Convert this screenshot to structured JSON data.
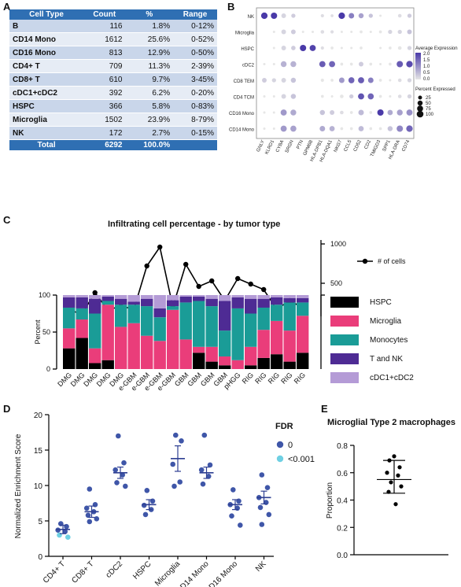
{
  "panel_labels": {
    "a": "A",
    "b": "B",
    "c": "C",
    "d": "D",
    "e": "E"
  },
  "table_a": {
    "headers": [
      "Cell Type",
      "Count",
      "%",
      "Range"
    ],
    "rows": [
      [
        "B",
        "116",
        "1.8%",
        "0-12%"
      ],
      [
        "CD14 Mono",
        "1612",
        "25.6%",
        "0-52%"
      ],
      [
        "CD16 Mono",
        "813",
        "12.9%",
        "0-50%"
      ],
      [
        "CD4+ T",
        "709",
        "11.3%",
        "2-39%"
      ],
      [
        "CD8+ T",
        "610",
        "9.7%",
        "3-45%"
      ],
      [
        "cDC1+cDC2",
        "392",
        "6.2%",
        "0-20%"
      ],
      [
        "HSPC",
        "366",
        "5.8%",
        "0-83%"
      ],
      [
        "Microglia",
        "1502",
        "23.9%",
        "8-79%"
      ],
      [
        "NK",
        "172",
        "2.7%",
        "0-15%"
      ]
    ],
    "total": [
      "Total",
      "6292",
      "100.0%",
      ""
    ]
  },
  "chart_data": [
    {
      "type": "scatter",
      "panel": "B",
      "rows": [
        "NK",
        "Microglia",
        "HSPC",
        "cDC2",
        "CD8 TEM",
        "CD4 TCM",
        "CD16 Mono",
        "CD14 Mono"
      ],
      "genes": [
        "GNLY",
        "KLRD1",
        "CYBA",
        "SRGN",
        "PTN",
        "GPM6B",
        "HLA-DPB1",
        "HLA-DQA1",
        "NKG7",
        "CCL5",
        "CD52",
        "CD2",
        "TMIGD3",
        "SPP1",
        "HLA-DRA",
        "CD74"
      ],
      "legend_color_title": "Average Expression",
      "color_ticks": [
        "2.0",
        "1.5",
        "1.0",
        "0.5",
        "0.0"
      ],
      "color_range": [
        0,
        2.0
      ],
      "legend_size_title": "Percent Expressed",
      "size_ticks": [
        "25",
        "50",
        "75",
        "100"
      ],
      "colors": {
        "low": "#e6e6e6",
        "high": "#4a3aa8"
      },
      "matrix": [
        [
          [
            2.0,
            90
          ],
          [
            2.0,
            85
          ],
          [
            0.2,
            40
          ],
          [
            0.3,
            30
          ],
          [
            0,
            0
          ],
          [
            0,
            0
          ],
          [
            0.1,
            15
          ],
          [
            0.1,
            10
          ],
          [
            2.0,
            90
          ],
          [
            1.2,
            60
          ],
          [
            0.8,
            50
          ],
          [
            0.4,
            30
          ],
          [
            0,
            5
          ],
          [
            0,
            0
          ],
          [
            0.1,
            20
          ],
          [
            0.3,
            30
          ]
        ],
        [
          [
            0,
            0
          ],
          [
            0,
            5
          ],
          [
            0.2,
            40
          ],
          [
            0.3,
            40
          ],
          [
            0,
            5
          ],
          [
            0,
            5
          ],
          [
            0.1,
            20
          ],
          [
            0.1,
            15
          ],
          [
            0,
            5
          ],
          [
            0,
            5
          ],
          [
            0,
            10
          ],
          [
            0,
            5
          ],
          [
            0,
            10
          ],
          [
            0.2,
            30
          ],
          [
            0.2,
            30
          ],
          [
            0.4,
            40
          ]
        ],
        [
          [
            0,
            0
          ],
          [
            0,
            5
          ],
          [
            0.2,
            40
          ],
          [
            0.3,
            35
          ],
          [
            2.0,
            85
          ],
          [
            1.9,
            80
          ],
          [
            0.1,
            15
          ],
          [
            0,
            10
          ],
          [
            0,
            5
          ],
          [
            0,
            5
          ],
          [
            0,
            10
          ],
          [
            0,
            0
          ],
          [
            0,
            5
          ],
          [
            0,
            10
          ],
          [
            0,
            20
          ],
          [
            0.2,
            30
          ]
        ],
        [
          [
            0,
            5
          ],
          [
            0,
            5
          ],
          [
            0.6,
            70
          ],
          [
            0.6,
            70
          ],
          [
            0,
            0
          ],
          [
            0,
            0
          ],
          [
            1.6,
            80
          ],
          [
            1.5,
            80
          ],
          [
            0,
            10
          ],
          [
            0,
            10
          ],
          [
            0.3,
            40
          ],
          [
            0,
            10
          ],
          [
            0,
            5
          ],
          [
            0,
            10
          ],
          [
            1.6,
            85
          ],
          [
            1.8,
            90
          ]
        ],
        [
          [
            0.3,
            40
          ],
          [
            0.2,
            30
          ],
          [
            0.2,
            40
          ],
          [
            0.4,
            50
          ],
          [
            0,
            0
          ],
          [
            0,
            0
          ],
          [
            0,
            15
          ],
          [
            0,
            10
          ],
          [
            0.9,
            60
          ],
          [
            1.5,
            75
          ],
          [
            1.6,
            80
          ],
          [
            1.2,
            60
          ],
          [
            0,
            10
          ],
          [
            0,
            5
          ],
          [
            0.1,
            20
          ],
          [
            0.2,
            30
          ]
        ],
        [
          [
            0,
            5
          ],
          [
            0,
            5
          ],
          [
            0.2,
            40
          ],
          [
            0.4,
            50
          ],
          [
            0,
            0
          ],
          [
            0,
            0
          ],
          [
            0,
            10
          ],
          [
            0,
            5
          ],
          [
            0,
            20
          ],
          [
            0.3,
            30
          ],
          [
            1.7,
            80
          ],
          [
            1.5,
            75
          ],
          [
            0,
            10
          ],
          [
            0,
            5
          ],
          [
            0.1,
            20
          ],
          [
            0.2,
            30
          ]
        ],
        [
          [
            0,
            5
          ],
          [
            0,
            5
          ],
          [
            0.9,
            80
          ],
          [
            0.7,
            70
          ],
          [
            0,
            0
          ],
          [
            0,
            0
          ],
          [
            0.4,
            50
          ],
          [
            0.3,
            40
          ],
          [
            0.1,
            20
          ],
          [
            0,
            10
          ],
          [
            0.5,
            60
          ],
          [
            0,
            10
          ],
          [
            2.0,
            85
          ],
          [
            0.7,
            55
          ],
          [
            0.8,
            70
          ],
          [
            1.0,
            80
          ]
        ],
        [
          [
            0,
            5
          ],
          [
            0,
            5
          ],
          [
            0.9,
            80
          ],
          [
            0.8,
            75
          ],
          [
            0,
            0
          ],
          [
            0,
            0
          ],
          [
            0.7,
            60
          ],
          [
            0.6,
            55
          ],
          [
            0,
            10
          ],
          [
            0,
            10
          ],
          [
            0.5,
            55
          ],
          [
            0,
            10
          ],
          [
            0,
            10
          ],
          [
            0.4,
            50
          ],
          [
            1.1,
            85
          ],
          [
            1.5,
            90
          ]
        ]
      ]
    },
    {
      "type": "bar",
      "panel": "C",
      "title": "Infiltrating cell percentage - by tumor type",
      "stacked": true,
      "categories": [
        "DMG",
        "DMG",
        "DMG",
        "DMG",
        "DMG",
        "e-GBM",
        "e-GBM",
        "e-GBM",
        "e-GBM",
        "GBM",
        "GBM",
        "GBM",
        "GBM",
        "pHGG",
        "RIG",
        "RIG",
        "RIG",
        "RIG",
        "RIG"
      ],
      "ylabel": "Percent",
      "ylim": [
        0,
        100
      ],
      "yticks": [
        "0",
        "50",
        "100"
      ],
      "series": [
        {
          "name": "HSPC",
          "color": "#000000",
          "values": [
            28,
            42,
            8,
            12,
            0,
            0,
            0,
            0,
            0,
            0,
            22,
            10,
            5,
            0,
            5,
            15,
            20,
            10,
            22
          ]
        },
        {
          "name": "Microglia",
          "color": "#ea3d7a",
          "values": [
            27,
            25,
            20,
            75,
            57,
            62,
            45,
            38,
            80,
            40,
            8,
            20,
            12,
            12,
            25,
            38,
            45,
            42,
            50
          ]
        },
        {
          "name": "Monocytes",
          "color": "#1a9c97",
          "values": [
            28,
            15,
            47,
            5,
            30,
            25,
            40,
            32,
            5,
            50,
            62,
            55,
            35,
            70,
            45,
            30,
            22,
            38,
            18
          ]
        },
        {
          "name": "T and NK",
          "color": "#4e2b94",
          "values": [
            14,
            15,
            20,
            6,
            8,
            4,
            10,
            12,
            8,
            8,
            6,
            10,
            40,
            15,
            20,
            12,
            10,
            6,
            6
          ]
        },
        {
          "name": "cDC1+cDC2",
          "color": "#b49bd6",
          "values": [
            3,
            3,
            5,
            2,
            5,
            9,
            5,
            18,
            7,
            2,
            2,
            5,
            8,
            3,
            5,
            5,
            3,
            4,
            4
          ]
        }
      ],
      "line_series": {
        "name": "# of cells",
        "values": [
          160,
          110,
          380,
          160,
          210,
          170,
          720,
          960,
          200,
          740,
          460,
          530,
          280,
          560,
          490,
          420,
          170,
          280,
          190
        ]
      },
      "line_ticks": [
        "500",
        "1000"
      ]
    },
    {
      "type": "scatter",
      "panel": "D",
      "categories": [
        "CD4+ T",
        "CD8+ T",
        "cDC2",
        "HSPC",
        "Microglia",
        "CD14 Mono",
        "CD16 Mono",
        "NK"
      ],
      "ylabel": "Normalized Enrichment Score",
      "ylim": [
        0,
        20
      ],
      "yticks": [
        "0",
        "5",
        "10",
        "15",
        "20"
      ],
      "legend_title": "FDR",
      "legend_items": [
        {
          "label": "0",
          "color": "#3f56a8"
        },
        {
          "label": "<0.001",
          "color": "#6fd0e3"
        }
      ],
      "means": [
        3.8,
        6.3,
        11.8,
        7.3,
        13.8,
        11.8,
        7.3,
        8.3
      ],
      "errors": [
        0.6,
        0.8,
        0.8,
        0.7,
        1.8,
        0.8,
        0.7,
        0.9
      ],
      "points": [
        [
          [
            4.6,
            0
          ],
          [
            4.2,
            0
          ],
          [
            3.7,
            0
          ],
          [
            3.5,
            0
          ],
          [
            3.0,
            1
          ],
          [
            2.7,
            1
          ]
        ],
        [
          [
            9.5,
            0
          ],
          [
            7.3,
            0
          ],
          [
            6.8,
            0
          ],
          [
            6.3,
            0
          ],
          [
            5.8,
            0
          ],
          [
            5.3,
            0
          ],
          [
            4.9,
            0
          ]
        ],
        [
          [
            17.0,
            0
          ],
          [
            13.2,
            0
          ],
          [
            12.2,
            0
          ],
          [
            11.5,
            0
          ],
          [
            10.4,
            0
          ],
          [
            9.9,
            0
          ]
        ],
        [
          [
            9.3,
            0
          ],
          [
            7.8,
            0
          ],
          [
            7.2,
            0
          ],
          [
            6.6,
            0
          ],
          [
            5.9,
            0
          ]
        ],
        [
          [
            17.1,
            0
          ],
          [
            16.3,
            0
          ],
          [
            13.0,
            0
          ],
          [
            10.5,
            0
          ],
          [
            9.9,
            0
          ]
        ],
        [
          [
            17.1,
            0
          ],
          [
            12.9,
            0
          ],
          [
            12.2,
            0
          ],
          [
            11.3,
            0
          ],
          [
            10.2,
            0
          ]
        ],
        [
          [
            9.4,
            0
          ],
          [
            7.8,
            0
          ],
          [
            7.3,
            0
          ],
          [
            6.8,
            0
          ],
          [
            5.7,
            0
          ],
          [
            4.4,
            0
          ]
        ],
        [
          [
            11.5,
            0
          ],
          [
            9.7,
            0
          ],
          [
            8.3,
            0
          ],
          [
            7.6,
            0
          ],
          [
            6.9,
            0
          ],
          [
            5.9,
            0
          ],
          [
            4.5,
            0
          ]
        ]
      ]
    },
    {
      "type": "scatter",
      "panel": "E",
      "title": "Microglial Type 2 macrophages",
      "ylabel": "Proportion",
      "ylim": [
        0,
        0.8
      ],
      "yticks": [
        "0.0",
        "0.2",
        "0.4",
        "0.6",
        "0.8"
      ],
      "mean": 0.55,
      "sd_range": [
        0.45,
        0.69
      ],
      "values": [
        0.72,
        0.69,
        0.64,
        0.6,
        0.58,
        0.53,
        0.5,
        0.46,
        0.37
      ]
    }
  ]
}
